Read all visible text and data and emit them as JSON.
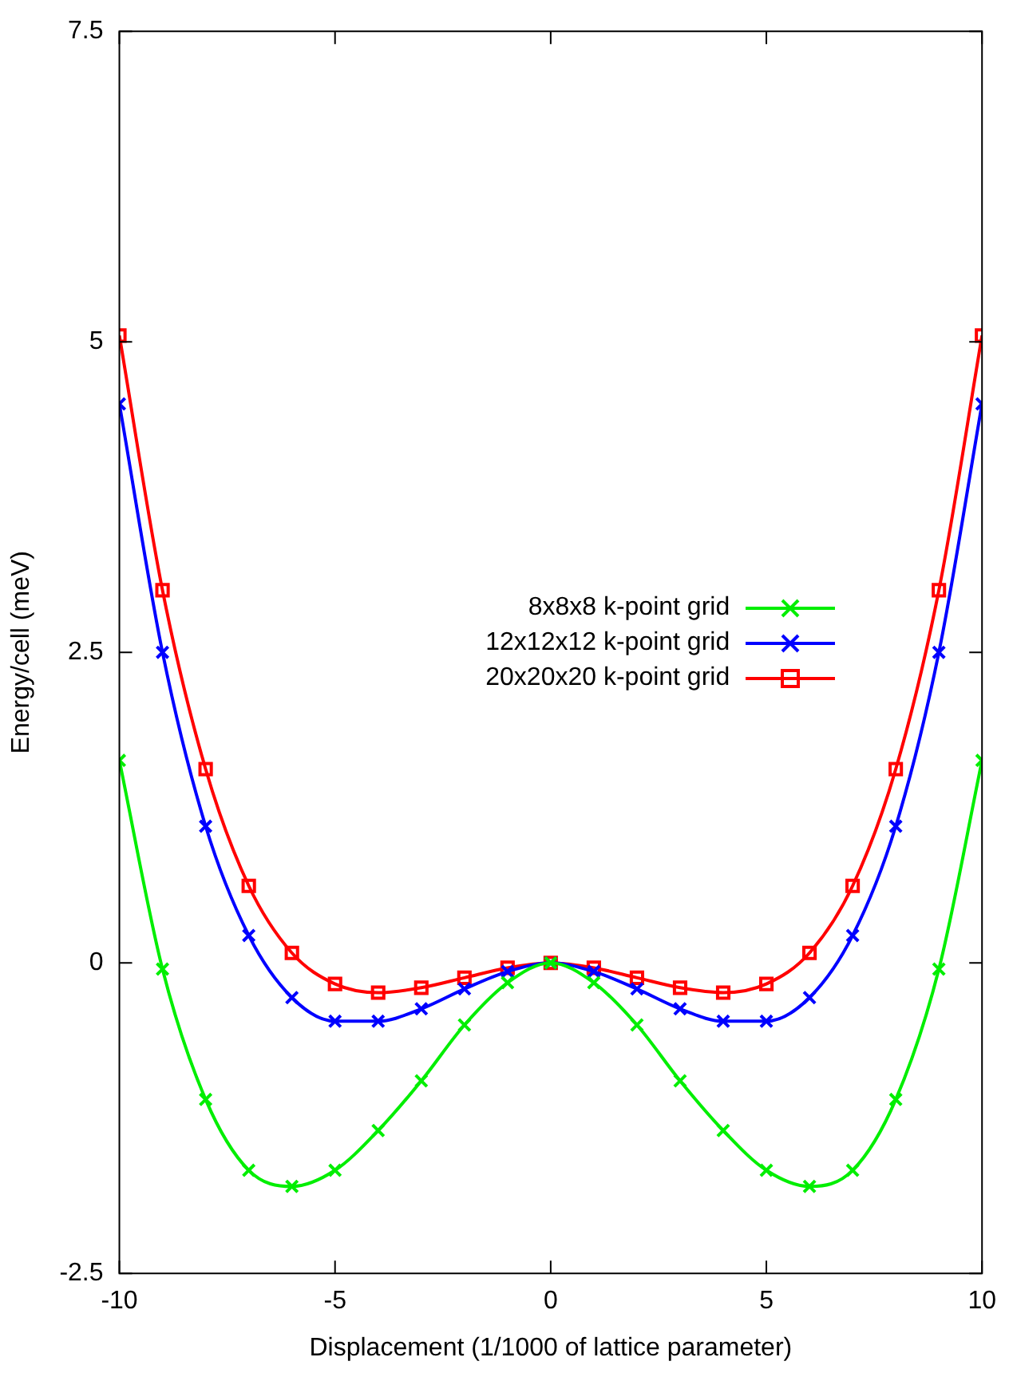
{
  "chart_data": {
    "type": "line",
    "xlabel": "Displacement (1/1000 of lattice parameter)",
    "ylabel": "Energy/cell (meV)",
    "x": [
      -10,
      -9,
      -8,
      -7,
      -6,
      -5,
      -4,
      -3,
      -2,
      -1,
      0,
      1,
      2,
      3,
      4,
      5,
      6,
      7,
      8,
      9,
      10
    ],
    "xlim": [
      -10,
      10
    ],
    "xticks": [
      -10,
      -5,
      0,
      5,
      10
    ],
    "ylim": [
      -2.5,
      7.5
    ],
    "yticks": [
      -2.5,
      0,
      2.5,
      5,
      7.5
    ],
    "grid": false,
    "legend": "right",
    "series": [
      {
        "name": "8x8x8 k-point grid",
        "color": "#00ee00",
        "marker": "cross",
        "values": [
          1.63,
          -0.05,
          -1.1,
          -1.67,
          -1.8,
          -1.67,
          -1.35,
          -0.95,
          -0.5,
          -0.16,
          0,
          -0.16,
          -0.5,
          -0.95,
          -1.35,
          -1.67,
          -1.8,
          -1.67,
          -1.1,
          -0.05,
          1.63
        ]
      },
      {
        "name": "12x12x12 k-point grid",
        "color": "#0000ff",
        "marker": "cross",
        "values": [
          4.5,
          2.5,
          1.1,
          0.22,
          -0.28,
          -0.47,
          -0.47,
          -0.37,
          -0.21,
          -0.07,
          0,
          -0.07,
          -0.21,
          -0.37,
          -0.47,
          -0.47,
          -0.28,
          0.22,
          1.1,
          2.5,
          4.5
        ]
      },
      {
        "name": "20x20x20 k-point grid",
        "color": "#ff0000",
        "marker": "square",
        "values": [
          5.05,
          3.0,
          1.56,
          0.62,
          0.08,
          -0.17,
          -0.24,
          -0.2,
          -0.12,
          -0.04,
          0,
          -0.04,
          -0.12,
          -0.2,
          -0.24,
          -0.17,
          0.08,
          0.62,
          1.56,
          3.0,
          5.05
        ]
      }
    ]
  }
}
